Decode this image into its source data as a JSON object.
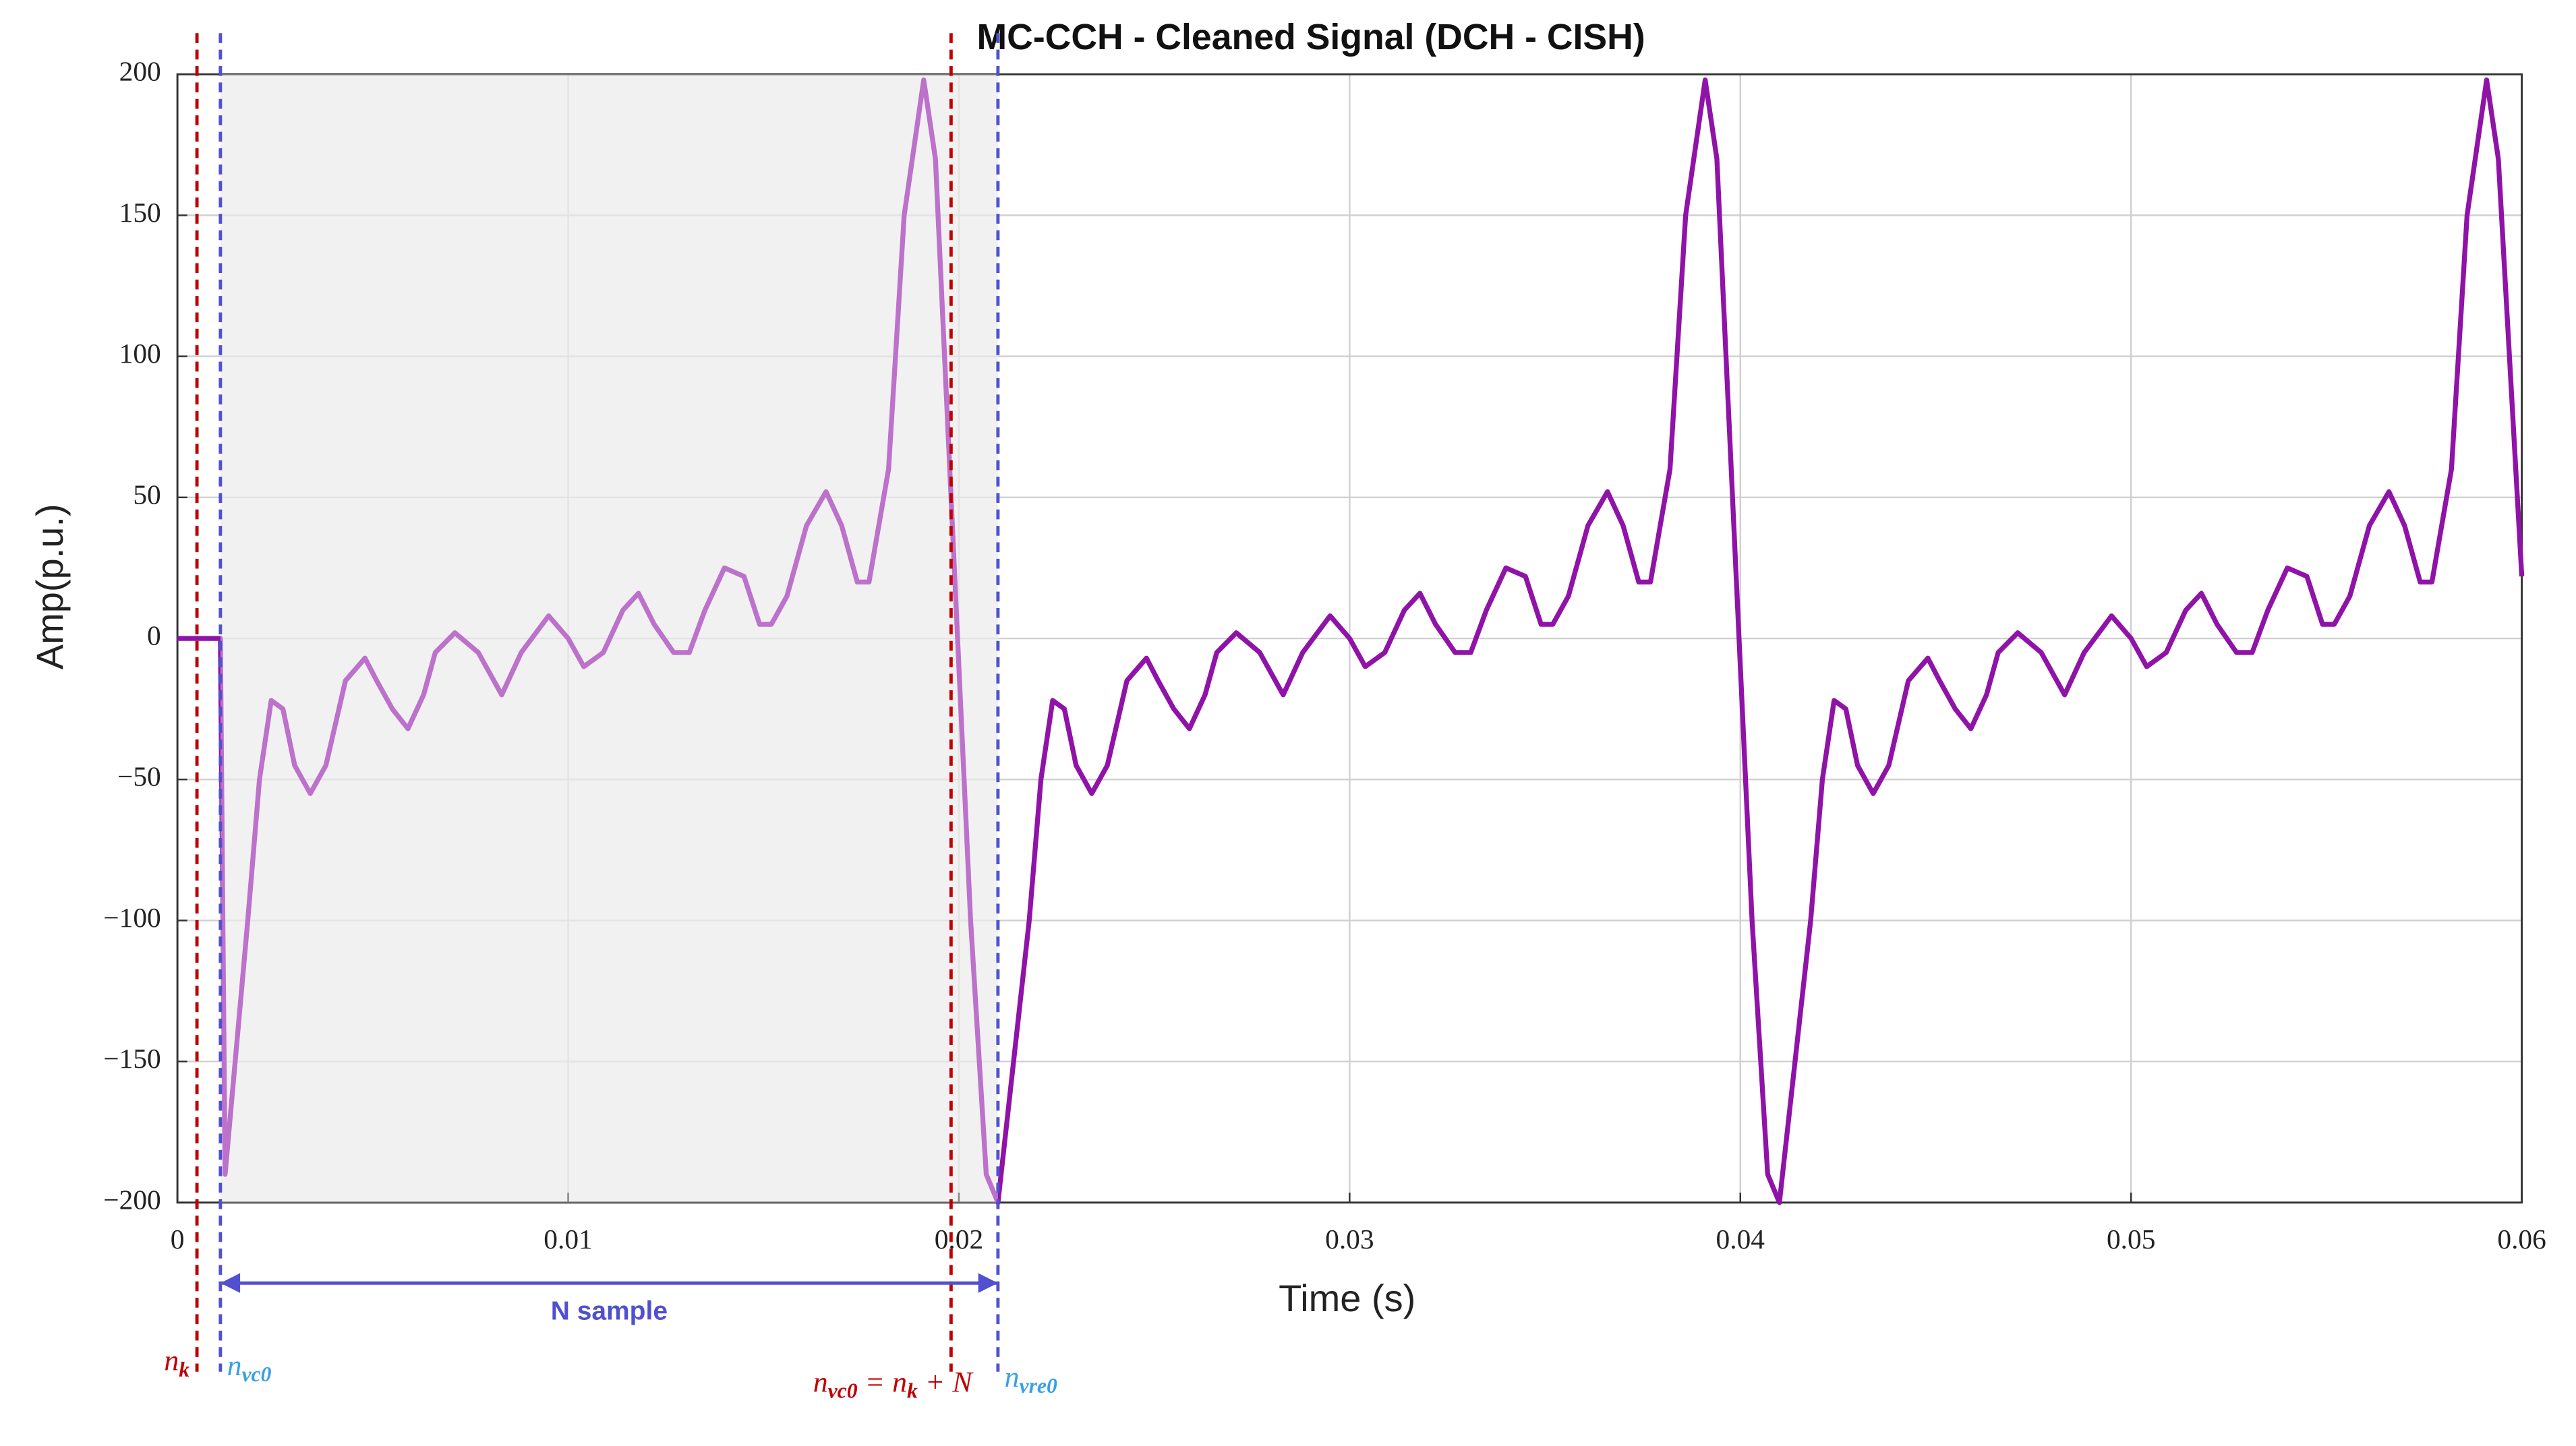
{
  "chart_data": {
    "type": "line",
    "title": "MC-CCH - Cleaned Signal (DCH - CISH)",
    "xlabel": "Time (s)",
    "ylabel": "Amp(p.u.)",
    "color": "#9013a8",
    "x": [
      0,
      0.0011,
      0.00122,
      0.0018,
      0.0021,
      0.0024,
      0.0027,
      0.003,
      0.0034,
      0.0038,
      0.0043,
      0.0048,
      0.0051,
      0.0055,
      0.0059,
      0.0063,
      0.0066,
      0.0071,
      0.0077,
      0.0081,
      0.0083,
      0.0088,
      0.0095,
      0.01,
      0.0104,
      0.0109,
      0.0114,
      0.0118,
      0.0122,
      0.0127,
      0.0131,
      0.0135,
      0.014,
      0.0145,
      0.0149,
      0.0152,
      0.0156,
      0.0161,
      0.0166,
      0.017,
      0.0174,
      0.0177,
      0.0182,
      0.0186,
      0.0191,
      0.0194,
      0.0198,
      0.0203,
      0.0207,
      0.021,
      0.0218,
      0.0221,
      0.0224,
      0.0227,
      0.023,
      0.0234,
      0.0238,
      0.0243,
      0.0248,
      0.0251,
      0.0255,
      0.0259,
      0.0263,
      0.0266,
      0.0271,
      0.0277,
      0.0281,
      0.0283,
      0.0288,
      0.0295,
      0.03,
      0.0304,
      0.0309,
      0.0314,
      0.0318,
      0.0322,
      0.0327,
      0.0331,
      0.0335,
      0.034,
      0.0345,
      0.0349,
      0.0352,
      0.0356,
      0.0361,
      0.0366,
      0.037,
      0.0374,
      0.0377,
      0.0382,
      0.0386,
      0.0391,
      0.0394,
      0.0398,
      0.0403,
      0.0407,
      0.041,
      0.0418,
      0.0421,
      0.0424,
      0.0427,
      0.043,
      0.0434,
      0.0438,
      0.0443,
      0.0448,
      0.0451,
      0.0455,
      0.0459,
      0.0463,
      0.0466,
      0.0471,
      0.0477,
      0.0481,
      0.0483,
      0.0488,
      0.0495,
      0.05,
      0.0504,
      0.0509,
      0.0514,
      0.0518,
      0.0522,
      0.0527,
      0.0531,
      0.0535,
      0.054,
      0.0545,
      0.0549,
      0.0552,
      0.0556,
      0.0561,
      0.0566,
      0.057,
      0.0574,
      0.0577,
      0.0582,
      0.0586,
      0.0591,
      0.0594,
      0.06
    ],
    "values": [
      0,
      0,
      -190,
      -100,
      -50,
      -22,
      -25,
      -45,
      -55,
      -45,
      -15,
      -7,
      -15,
      -25,
      -32,
      -20,
      -5,
      2,
      -5,
      -15,
      -20,
      -5,
      8,
      0,
      -10,
      -5,
      10,
      16,
      5,
      -5,
      -5,
      10,
      25,
      22,
      5,
      5,
      15,
      40,
      52,
      40,
      20,
      20,
      60,
      150,
      198,
      170,
      50,
      -100,
      -190,
      -200,
      -100,
      -50,
      -22,
      -25,
      -45,
      -55,
      -45,
      -15,
      -7,
      -15,
      -25,
      -32,
      -20,
      -5,
      2,
      -5,
      -15,
      -20,
      -5,
      8,
      0,
      -10,
      -5,
      10,
      16,
      5,
      -5,
      -5,
      10,
      25,
      22,
      5,
      5,
      15,
      40,
      52,
      40,
      20,
      20,
      60,
      150,
      198,
      170,
      50,
      -100,
      -190,
      -200,
      -100,
      -50,
      -22,
      -25,
      -45,
      -55,
      -45,
      -15,
      -7,
      -15,
      -25,
      -32,
      -20,
      -5,
      2,
      -5,
      -15,
      -20,
      -5,
      8,
      0,
      -10,
      -5,
      10,
      16,
      5,
      -5,
      -5,
      10,
      25,
      22,
      5,
      5,
      15,
      40,
      52,
      40,
      20,
      20,
      60,
      150,
      198,
      170,
      22
    ],
    "xlim": [
      0,
      0.06
    ],
    "xticks": [
      0,
      0.01,
      0.02,
      0.03,
      0.04,
      0.05,
      0.06
    ],
    "ylim": [
      -200,
      200
    ],
    "yticks": [
      {
        "value": -200,
        "label": "−200"
      },
      {
        "value": -150,
        "label": "−150"
      },
      {
        "value": -100,
        "label": "−100"
      },
      {
        "value": -50,
        "label": "−50"
      },
      0,
      50,
      100,
      150,
      200
    ],
    "grid": true,
    "shade": [
      0.0011,
      0.021
    ],
    "span": {
      "label": "N sample",
      "from": 0.0011,
      "to": 0.021,
      "color": "#5050d0"
    },
    "annotations": [
      {
        "x": 0.0005,
        "color": "#c00000",
        "label": [
          {
            "text": "n",
            "sub": "k"
          }
        ]
      },
      {
        "x": 0.0011,
        "color": "#5050d0",
        "label_color": "#3aa0e6",
        "label": [
          {
            "text": "n",
            "sub": "vc0"
          }
        ]
      },
      {
        "x": 0.0198,
        "color": "#c00000",
        "label": [
          {
            "text": "n",
            "sub": "vc0"
          },
          {
            "text": " = "
          },
          {
            "text": "n",
            "sub": "k"
          },
          {
            "text": " + N"
          }
        ]
      },
      {
        "x": 0.021,
        "color": "#5050d0",
        "label_color": "#3aa0e6",
        "label": [
          {
            "text": "n",
            "sub": "vre0"
          }
        ]
      }
    ]
  }
}
